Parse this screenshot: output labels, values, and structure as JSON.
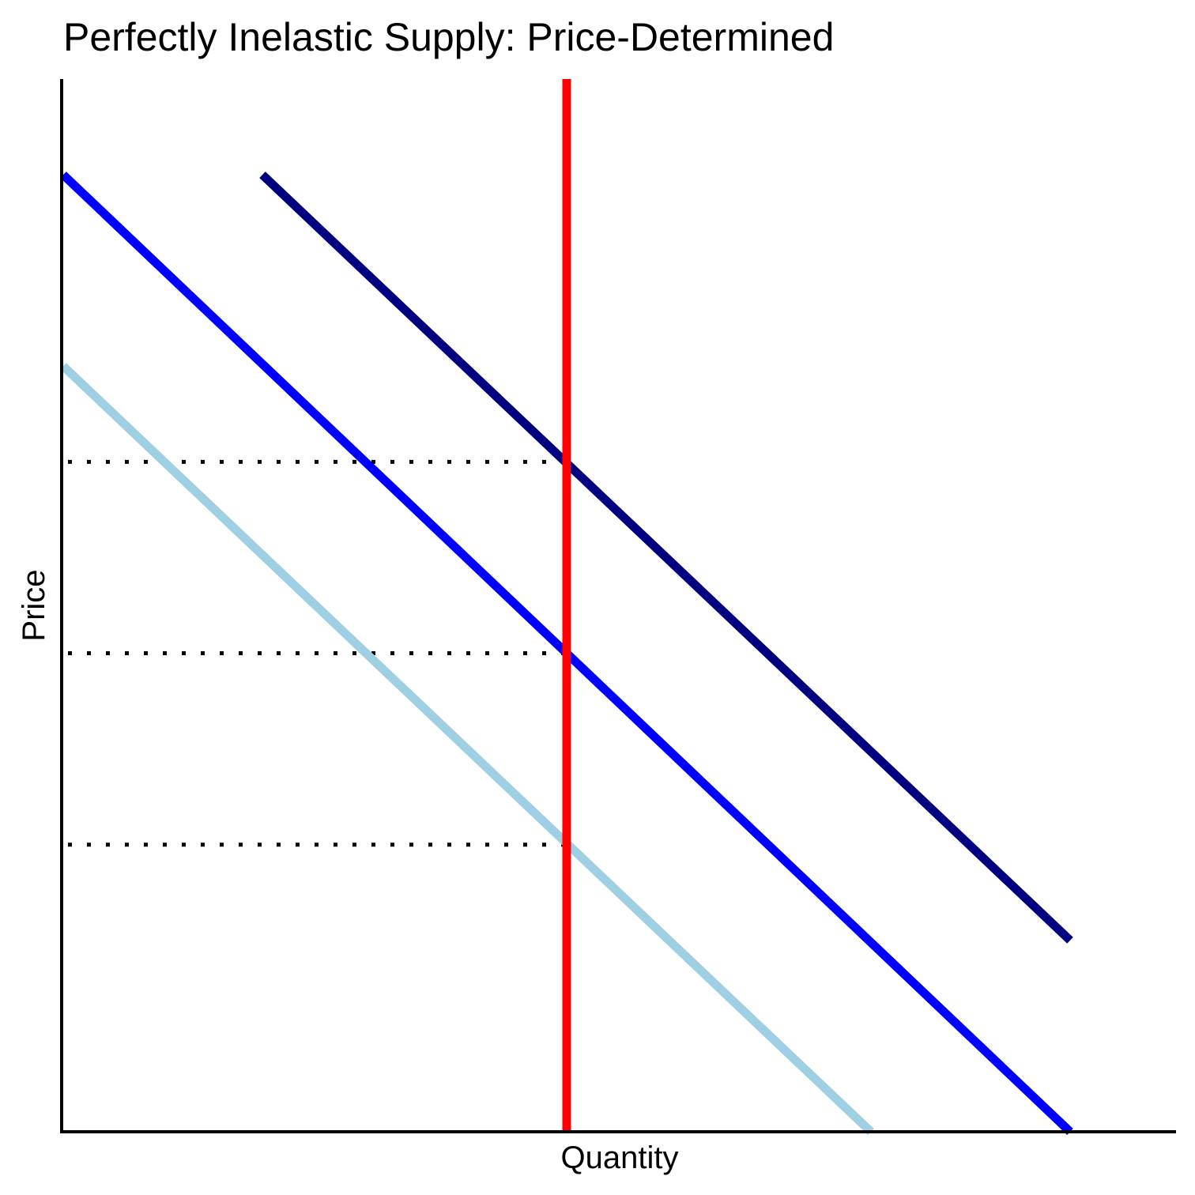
{
  "chart_data": {
    "type": "line",
    "title": "Perfectly Inelastic Supply: Price-Determined",
    "xlabel": "Quantity",
    "ylabel": "Price",
    "xlim": [
      0,
      10
    ],
    "ylim": [
      0,
      11
    ],
    "grid": false,
    "legend": "none",
    "series": [
      {
        "id": "demand-low",
        "color": "#9ecfe2",
        "points": [
          [
            0,
            8
          ],
          [
            7.3,
            0
          ]
        ]
      },
      {
        "id": "demand-mid",
        "color": "#0000ff",
        "points": [
          [
            0,
            10
          ],
          [
            9.1,
            0
          ]
        ]
      },
      {
        "id": "demand-high",
        "color": "#000080",
        "points": [
          [
            1.8,
            10
          ],
          [
            9.1,
            2
          ]
        ]
      },
      {
        "id": "supply",
        "color": "#ff0000",
        "points": [
          [
            4.55,
            0
          ],
          [
            4.55,
            11
          ]
        ]
      }
    ],
    "guides": [
      {
        "id": "price-guide-high",
        "y": 7,
        "x": [
          0,
          4.55
        ]
      },
      {
        "id": "price-guide-mid",
        "y": 5,
        "x": [
          0,
          4.55
        ]
      },
      {
        "id": "price-guide-low",
        "y": 3,
        "x": [
          0,
          4.55
        ]
      }
    ]
  }
}
